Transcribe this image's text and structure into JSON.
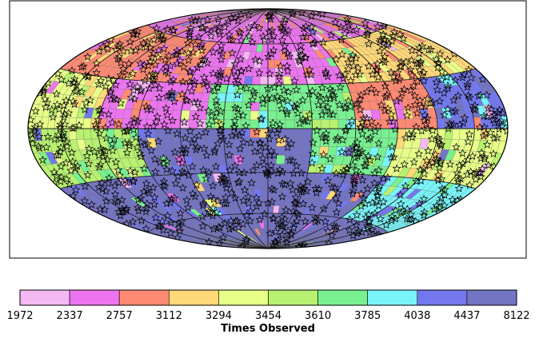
{
  "chart_data": {
    "type": "heatmap",
    "projection": "Hammer-Aitoff all-sky",
    "colorbar": {
      "label": "Times Observed",
      "boundaries": [
        "1972",
        "2337",
        "2757",
        "3112",
        "3294",
        "3454",
        "3610",
        "3785",
        "4038",
        "4437",
        "8122"
      ],
      "colors": [
        "#f4b8f2",
        "#ec74f0",
        "#ff8a74",
        "#ffd878",
        "#e8ff88",
        "#b8f070",
        "#78f090",
        "#78f4f8",
        "#7478ee",
        "#7474c4"
      ]
    },
    "sky_regions": [
      {
        "lon_range": [
          -180,
          180
        ],
        "lat_range": [
          60,
          90
        ],
        "class": 1
      },
      {
        "lon_range": [
          -180,
          -60
        ],
        "lat_range": [
          30,
          60
        ],
        "class": 2
      },
      {
        "lon_range": [
          -60,
          60
        ],
        "lat_range": [
          30,
          60
        ],
        "class": 1
      },
      {
        "lon_range": [
          60,
          180
        ],
        "lat_range": [
          30,
          60
        ],
        "class": 3
      },
      {
        "lon_range": [
          -180,
          -120
        ],
        "lat_range": [
          0,
          30
        ],
        "class": 4
      },
      {
        "lon_range": [
          -120,
          -40
        ],
        "lat_range": [
          0,
          30
        ],
        "class": 1
      },
      {
        "lon_range": [
          -40,
          60
        ],
        "lat_range": [
          0,
          30
        ],
        "class": 6
      },
      {
        "lon_range": [
          60,
          120
        ],
        "lat_range": [
          0,
          30
        ],
        "class": 2
      },
      {
        "lon_range": [
          120,
          180
        ],
        "lat_range": [
          0,
          30
        ],
        "class": 8
      },
      {
        "lon_range": [
          -180,
          -90
        ],
        "lat_range": [
          -30,
          0
        ],
        "class": 5
      },
      {
        "lon_range": [
          -90,
          30
        ],
        "lat_range": [
          -30,
          0
        ],
        "class": 9
      },
      {
        "lon_range": [
          30,
          90
        ],
        "lat_range": [
          -30,
          0
        ],
        "class": 6
      },
      {
        "lon_range": [
          90,
          180
        ],
        "lat_range": [
          -30,
          0
        ],
        "class": 4
      },
      {
        "lon_range": [
          -180,
          -30
        ],
        "lat_range": [
          -60,
          -30
        ],
        "class": 9
      },
      {
        "lon_range": [
          -30,
          90
        ],
        "lat_range": [
          -60,
          -30
        ],
        "class": 9
      },
      {
        "lon_range": [
          90,
          180
        ],
        "lat_range": [
          -60,
          -30
        ],
        "class": 7
      },
      {
        "lon_range": [
          -180,
          180
        ],
        "lat_range": [
          -90,
          -60
        ],
        "class": 9
      }
    ],
    "marker_count_estimate": 1200,
    "marker_symbol": "star"
  }
}
